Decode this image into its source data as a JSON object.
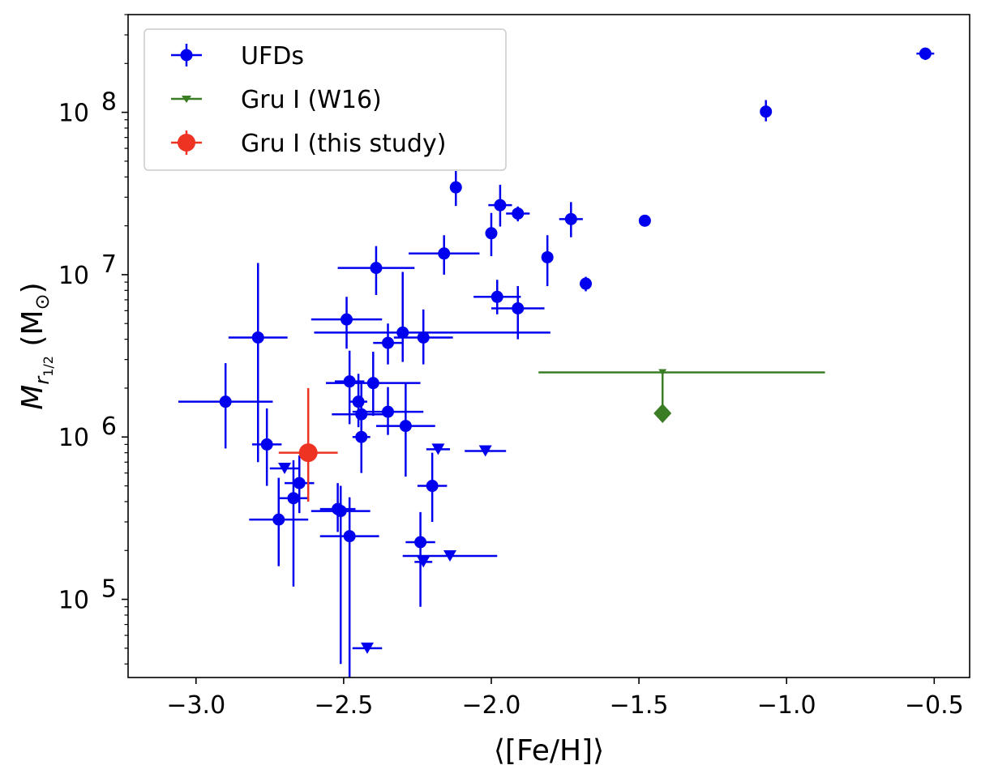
{
  "chart_data": {
    "type": "scatter",
    "xlabel": "⟨[Fe/H]⟩",
    "ylabel": {
      "prefix": "M",
      "sub": "r",
      "subsub": "1/2",
      "suffix": " (M",
      "sun": "⊙",
      "close": ")"
    },
    "xlim": [
      -3.23,
      -0.38
    ],
    "ylim": [
      33000,
      400000000
    ],
    "yscale": "log",
    "grid": false,
    "legend_position": "upper-left",
    "x_ticks": [
      {
        "value": -3.0,
        "label": "−3.0"
      },
      {
        "value": -2.5,
        "label": "−2.5"
      },
      {
        "value": -2.0,
        "label": "−2.0"
      },
      {
        "value": -1.5,
        "label": "−1.5"
      },
      {
        "value": -1.0,
        "label": "−1.0"
      },
      {
        "value": -0.5,
        "label": "−0.5"
      }
    ],
    "y_ticks": [
      {
        "value": 100000,
        "base": "10",
        "exp": "5"
      },
      {
        "value": 1000000,
        "base": "10",
        "exp": "6"
      },
      {
        "value": 10000000,
        "base": "10",
        "exp": "7"
      },
      {
        "value": 100000000,
        "base": "10",
        "exp": "8"
      }
    ],
    "series": [
      {
        "name": "UFDs",
        "color": "#0000ee",
        "marker": "circle",
        "points": [
          {
            "x": -0.53,
            "y": 230000000,
            "xerr": [
              0.03,
              0.03
            ],
            "yerr": [
              20000000,
              20000000
            ]
          },
          {
            "x": -1.07,
            "y": 101000000,
            "xerr": [
              0,
              0
            ],
            "yerr": [
              13000000,
              18000000
            ]
          },
          {
            "x": -1.48,
            "y": 21500000,
            "xerr": [
              0.02,
              0.02
            ],
            "yerr": [
              1500000,
              1500000
            ]
          },
          {
            "x": -1.68,
            "y": 8800000,
            "xerr": [
              0.02,
              0.02
            ],
            "yerr": [
              900000,
              900000
            ]
          },
          {
            "x": -1.73,
            "y": 22000000,
            "xerr": [
              0.04,
              0.04
            ],
            "yerr": [
              5000000,
              6000000
            ]
          },
          {
            "x": -1.81,
            "y": 12800000,
            "xerr": [
              0,
              0
            ],
            "yerr": [
              4300000,
              4700000
            ]
          },
          {
            "x": -1.91,
            "y": 23800000,
            "xerr": [
              0.04,
              0.04
            ],
            "yerr": [
              2500000,
              2500000
            ]
          },
          {
            "x": -1.91,
            "y": 6200000,
            "xerr": [
              0.09,
              0.09
            ],
            "yerr": [
              2200000,
              2300000
            ]
          },
          {
            "x": -1.97,
            "y": 26800000,
            "xerr": [
              0.04,
              0.04
            ],
            "yerr": [
              7000000,
              9000000
            ]
          },
          {
            "x": -1.98,
            "y": 7300000,
            "xerr": [
              0.08,
              0.08
            ],
            "yerr": [
              1600000,
              2000000
            ]
          },
          {
            "x": -2.0,
            "y": 18000000,
            "xerr": [
              0,
              0
            ],
            "yerr": [
              5000000,
              6000000
            ]
          },
          {
            "x": -2.12,
            "y": 34500000,
            "xerr": [
              0,
              0
            ],
            "yerr": [
              8000000,
              9000000
            ]
          },
          {
            "x": -2.16,
            "y": 13500000,
            "xerr": [
              0.12,
              0.12
            ],
            "yerr": [
              3500000,
              4000000
            ]
          },
          {
            "x": -2.39,
            "y": 11000000,
            "xerr": [
              0.13,
              0.13
            ],
            "yerr": [
              3500000,
              4000000
            ]
          },
          {
            "x": -2.3,
            "y": 4400000,
            "xerr": [
              0.3,
              0.5
            ],
            "yerr": [
              1500000,
              6000000
            ]
          },
          {
            "x": -2.23,
            "y": 4100000,
            "xerr": [
              0.1,
              0.1
            ],
            "yerr": [
              1300000,
              2000000
            ]
          },
          {
            "x": -2.49,
            "y": 5300000,
            "xerr": [
              0.12,
              0.12
            ],
            "yerr": [
              1800000,
              2000000
            ]
          },
          {
            "x": -2.35,
            "y": 3800000,
            "xerr": [
              0.05,
              0.05
            ],
            "yerr": [
              1000000,
              1200000
            ]
          },
          {
            "x": -2.79,
            "y": 4100000,
            "xerr": [
              0.1,
              0.1
            ],
            "yerr": [
              3400000,
              7700000
            ]
          },
          {
            "x": -2.48,
            "y": 2200000,
            "xerr": [
              0.05,
              0.05
            ],
            "yerr": [
              1000000,
              1200000
            ]
          },
          {
            "x": -2.4,
            "y": 2150000,
            "xerr": [
              0.16,
              0.16
            ],
            "yerr": [
              800000,
              1200000
            ]
          },
          {
            "x": -2.9,
            "y": 1650000,
            "xerr": [
              0.16,
              0.16
            ],
            "yerr": [
              800000,
              1200000
            ]
          },
          {
            "x": -2.45,
            "y": 1650000,
            "xerr": [
              0.03,
              0.03
            ],
            "yerr": [
              500000,
              800000
            ]
          },
          {
            "x": -2.44,
            "y": 1380000,
            "xerr": [
              0.1,
              0.1
            ],
            "yerr": [
              500000,
              800000
            ]
          },
          {
            "x": -2.35,
            "y": 1430000,
            "xerr": [
              0.12,
              0.12
            ],
            "yerr": [
              400000,
              600000
            ]
          },
          {
            "x": -2.29,
            "y": 1170000,
            "xerr": [
              0.1,
              0.1
            ],
            "yerr": [
              600000,
              1000000
            ]
          },
          {
            "x": -2.44,
            "y": 1000000,
            "xerr": [
              0.03,
              0.03
            ],
            "yerr": [
              400000,
              600000
            ]
          },
          {
            "x": -2.76,
            "y": 900000,
            "xerr": [
              0.05,
              0.05
            ],
            "yerr": [
              400000,
              600000
            ]
          },
          {
            "x": -2.65,
            "y": 520000,
            "xerr": [
              0.05,
              0.05
            ],
            "yerr": [
              180000,
              250000
            ]
          },
          {
            "x": -2.67,
            "y": 420000,
            "xerr": [
              0.05,
              0.05
            ],
            "yerr": [
              300000,
              300000
            ]
          },
          {
            "x": -2.72,
            "y": 310000,
            "xerr": [
              0.1,
              0.1
            ],
            "yerr": [
              150000,
              250000
            ]
          },
          {
            "x": -2.52,
            "y": 360000,
            "xerr": [
              0.06,
              0.06
            ],
            "yerr": [
              100000,
              160000
            ]
          },
          {
            "x": -2.51,
            "y": 350000,
            "xerr": [
              0.1,
              0.1
            ],
            "yerr": [
              310000,
              150000
            ]
          },
          {
            "x": -2.48,
            "y": 245000,
            "xerr": [
              0.1,
              0.1
            ],
            "yerr": [
              215000,
              180000
            ]
          },
          {
            "x": -2.24,
            "y": 225000,
            "xerr": [
              0.05,
              0.05
            ],
            "yerr": [
              135000,
              120000
            ]
          },
          {
            "x": -2.2,
            "y": 500000,
            "xerr": [
              0.05,
              0.05
            ],
            "yerr": [
              200000,
              300000
            ]
          }
        ],
        "upper_limits": [
          {
            "x": -2.7,
            "y": 640000,
            "xerr": [
              0.05,
              0.05
            ]
          },
          {
            "x": -2.18,
            "y": 840000,
            "xerr": [
              0.04,
              0.04
            ]
          },
          {
            "x": -2.02,
            "y": 820000,
            "xerr": [
              0.07,
              0.07
            ]
          },
          {
            "x": -2.14,
            "y": 185000,
            "xerr": [
              0.16,
              0.16
            ]
          },
          {
            "x": -2.23,
            "y": 170000,
            "xerr": [
              0.03,
              0.03
            ]
          },
          {
            "x": -2.42,
            "y": 50000,
            "xerr": [
              0.05,
              0.05
            ]
          }
        ]
      },
      {
        "name": "Gru I (W16)",
        "color": "#3a7d24",
        "marker": "triangle-down",
        "points": [
          {
            "x": -1.42,
            "y": 2500000,
            "xerr": [
              0.42,
              0.55
            ],
            "limit_to": 1400000
          }
        ]
      },
      {
        "name": "Gru I (this study)",
        "color": "#ee3322",
        "marker": "circle-large",
        "points": [
          {
            "x": -2.62,
            "y": 800000,
            "xerr": [
              0.1,
              0.1
            ],
            "yerr": [
              400000,
              1200000
            ]
          }
        ]
      }
    ]
  }
}
